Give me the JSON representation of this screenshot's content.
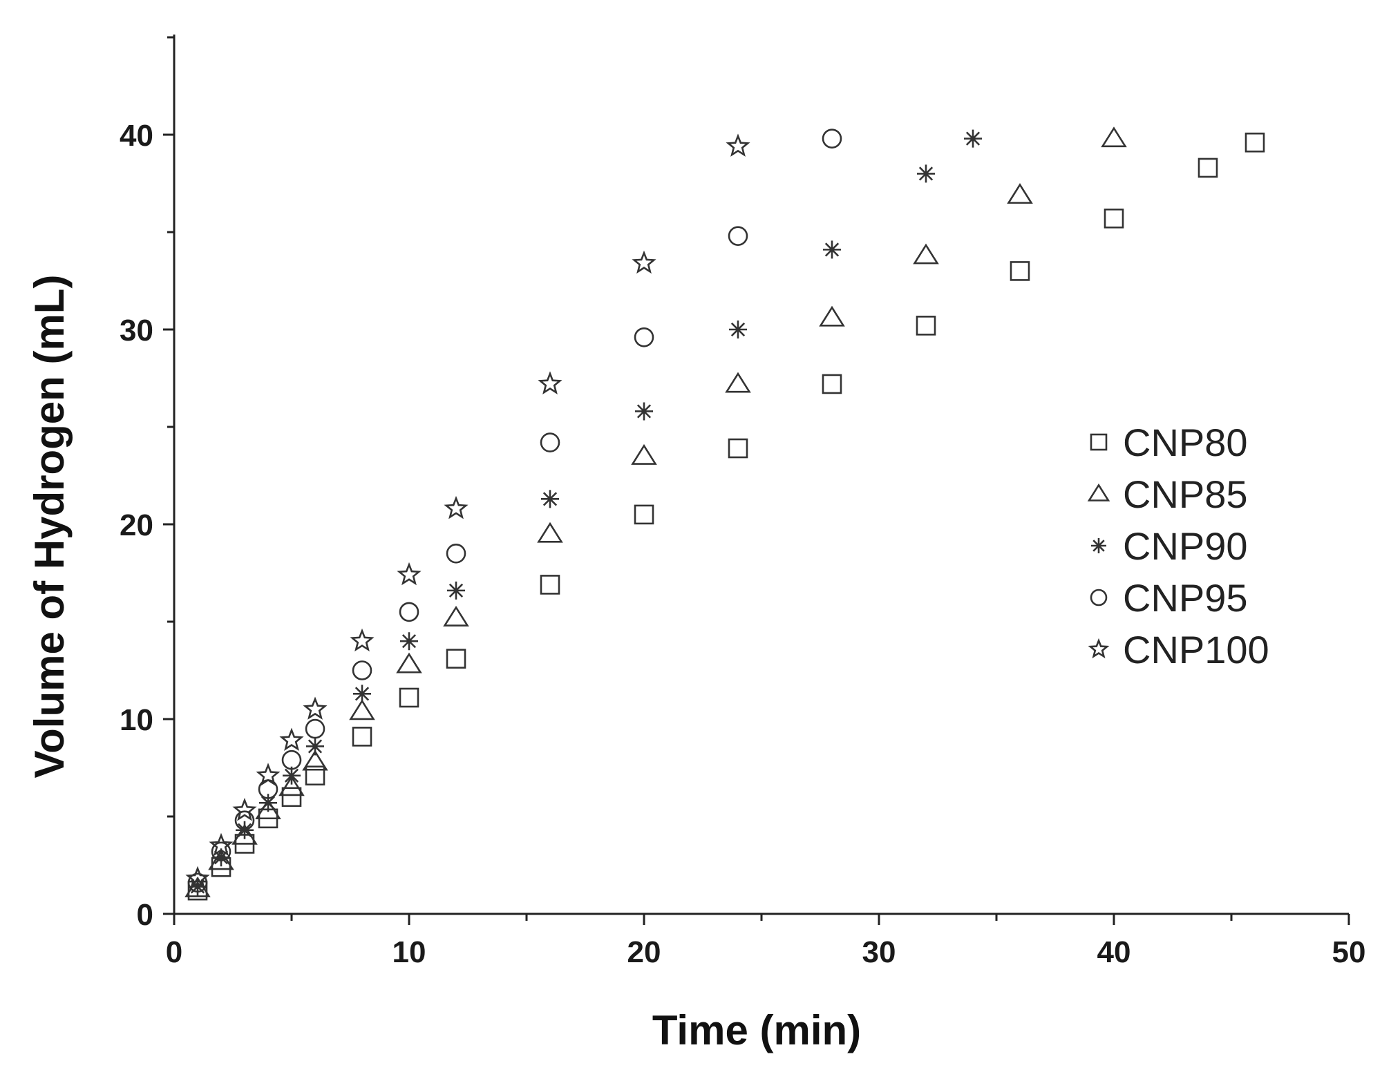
{
  "chart_data": {
    "type": "scatter",
    "title": "",
    "xlabel": "Time (min)",
    "ylabel": "Volume of Hydrogen (mL)",
    "xlim": [
      0,
      50
    ],
    "ylim": [
      0,
      45
    ],
    "xticks": [
      0,
      10,
      20,
      30,
      40,
      50
    ],
    "yticks": [
      0,
      10,
      20,
      30,
      40
    ],
    "grid": false,
    "legend_position": "right",
    "series": [
      {
        "name": "CNP80",
        "marker": "square",
        "x": [
          1,
          2,
          3,
          4,
          5,
          6,
          8,
          10,
          12,
          16,
          20,
          24,
          28,
          32,
          36,
          40,
          44,
          46
        ],
        "y": [
          1.2,
          2.4,
          3.6,
          4.9,
          6.0,
          7.1,
          9.1,
          11.1,
          13.1,
          16.9,
          20.5,
          23.9,
          27.2,
          30.2,
          33.0,
          35.7,
          38.3,
          39.6
        ]
      },
      {
        "name": "CNP85",
        "marker": "triangle",
        "x": [
          1,
          2,
          3,
          4,
          5,
          6,
          8,
          10,
          12,
          16,
          20,
          24,
          28,
          32,
          36,
          40
        ],
        "y": [
          1.3,
          2.7,
          4.0,
          5.3,
          6.5,
          7.8,
          10.4,
          12.8,
          15.2,
          19.5,
          23.5,
          27.2,
          30.6,
          33.8,
          36.9,
          39.8
        ]
      },
      {
        "name": "CNP90",
        "marker": "asterisk",
        "x": [
          1,
          2,
          3,
          4,
          5,
          6,
          8,
          10,
          12,
          16,
          20,
          24,
          28,
          32,
          34
        ],
        "y": [
          1.4,
          2.9,
          4.3,
          5.7,
          7.1,
          8.6,
          11.3,
          14.0,
          16.6,
          21.3,
          25.8,
          30.0,
          34.1,
          38.0,
          39.8
        ]
      },
      {
        "name": "CNP95",
        "marker": "circle",
        "x": [
          1,
          2,
          3,
          4,
          5,
          6,
          8,
          10,
          12,
          16,
          20,
          24,
          28
        ],
        "y": [
          1.6,
          3.2,
          4.8,
          6.4,
          7.9,
          9.5,
          12.5,
          15.5,
          18.5,
          24.2,
          29.6,
          34.8,
          39.8
        ]
      },
      {
        "name": "CNP100",
        "marker": "star",
        "x": [
          1,
          2,
          3,
          4,
          5,
          6,
          8,
          10,
          12,
          16,
          20,
          24
        ],
        "y": [
          1.8,
          3.5,
          5.3,
          7.1,
          8.9,
          10.5,
          14.0,
          17.4,
          20.8,
          27.2,
          33.4,
          39.4
        ]
      }
    ]
  }
}
